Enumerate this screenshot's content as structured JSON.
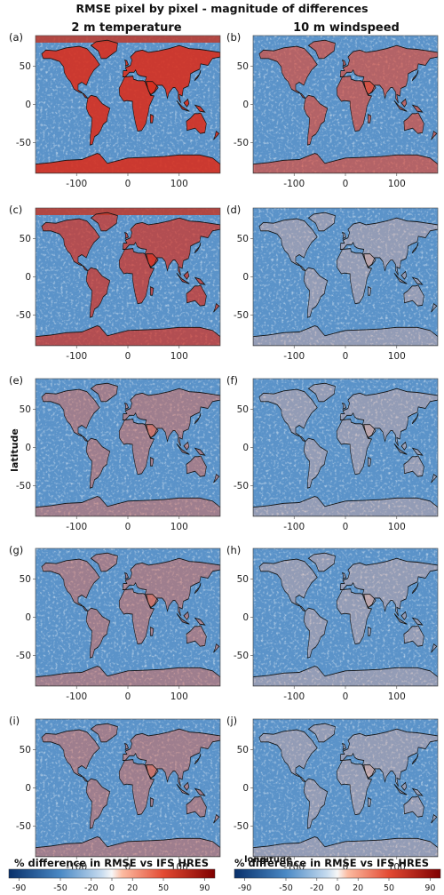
{
  "title": "RMSE pixel by pixel - magnitude of differences",
  "column_titles": [
    "2 m temperature",
    "10 m windspeed"
  ],
  "xlabel": "longitude",
  "ylabel": "latitude",
  "colors": {
    "negative": "#2166ac",
    "neutral": "#f7f7f7",
    "positive": "#b2182b",
    "ocean_base": "#5b93c9"
  },
  "chart_data": {
    "type": "heatmap",
    "xlim": [
      -180,
      180
    ],
    "ylim": [
      -90,
      90
    ],
    "x_ticks": [
      -100,
      0,
      100
    ],
    "y_ticks": [
      50,
      0,
      -50
    ],
    "panels": [
      {
        "label": "(a)",
        "variable": "2 m temperature"
      },
      {
        "label": "(b)",
        "variable": "10 m windspeed"
      },
      {
        "label": "(c)",
        "variable": "2 m temperature"
      },
      {
        "label": "(d)",
        "variable": "10 m windspeed"
      },
      {
        "label": "(e)",
        "variable": "2 m temperature"
      },
      {
        "label": "(f)",
        "variable": "10 m windspeed"
      },
      {
        "label": "(g)",
        "variable": "2 m temperature"
      },
      {
        "label": "(h)",
        "variable": "10 m windspeed"
      },
      {
        "label": "(i)",
        "variable": "2 m temperature"
      },
      {
        "label": "(j)",
        "variable": "10 m windspeed"
      }
    ],
    "colorbar": {
      "label": "% difference in RMSE vs IFS HRES",
      "range": [
        -100,
        100
      ],
      "ticks_left": [
        "-90",
        "-50",
        "-20",
        "0",
        "20",
        "50",
        "90"
      ],
      "ticks_right": [
        "-90",
        "-50",
        "-20",
        "0",
        "20",
        "50",
        "90"
      ],
      "tick_values": [
        -90,
        -50,
        -20,
        0,
        20,
        50,
        90
      ]
    }
  }
}
